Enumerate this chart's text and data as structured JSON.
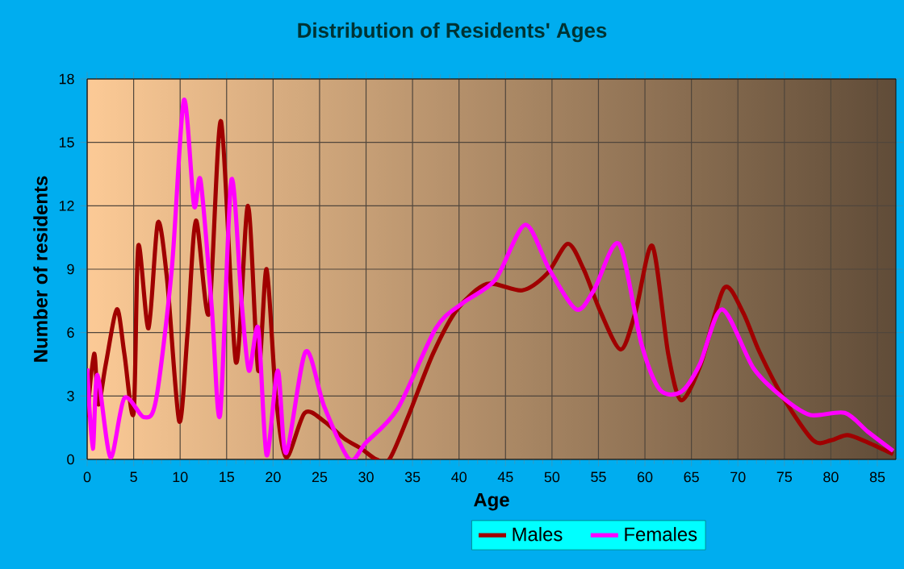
{
  "chart_data": {
    "type": "line",
    "title": "Distribution of Residents' Ages",
    "xlabel": "Age",
    "ylabel": "Number of residents",
    "xlim": [
      0,
      87
    ],
    "ylim": [
      0,
      18
    ],
    "xticks": [
      0,
      5,
      10,
      15,
      20,
      25,
      30,
      35,
      40,
      45,
      50,
      55,
      60,
      65,
      70,
      75,
      80,
      85
    ],
    "yticks": [
      0,
      3,
      6,
      9,
      12,
      15,
      18
    ],
    "grid": true,
    "legend": "bottom",
    "marker": "none",
    "line_style": "solid",
    "series": [
      {
        "name": "Males",
        "color": "#a00000",
        "x": [
          0,
          0.75,
          1.2,
          2,
          3.2,
          4,
          5,
          5.5,
          6.6,
          7.6,
          8.6,
          9.9,
          10.8,
          11.7,
          13.1,
          14.4,
          16,
          17.3,
          18.4,
          19.3,
          20.3,
          21.4,
          23.4,
          25.5,
          27.6,
          29.5,
          31.1,
          32.5,
          34.5,
          37.2,
          39.8,
          43,
          46.8,
          49.5,
          51.7,
          53.4,
          55.2,
          57.4,
          59,
          60.8,
          62.5,
          63.9,
          66,
          68.5,
          70.5,
          72.3,
          74.9,
          78.1,
          80,
          81.8,
          84,
          86.7
        ],
        "values": [
          2,
          5,
          2.6,
          4.5,
          7.1,
          5,
          2.2,
          10.1,
          6.2,
          11.2,
          8.5,
          1.8,
          6,
          11.3,
          6.9,
          16,
          4.6,
          12,
          4.2,
          9,
          3,
          0.1,
          2.2,
          1.8,
          1,
          0.5,
          0,
          0,
          2,
          5,
          7.1,
          8.3,
          8,
          8.8,
          10.2,
          9,
          7,
          5.2,
          7,
          10.1,
          5,
          2.8,
          4.5,
          8.1,
          7,
          5.1,
          2.9,
          0.9,
          0.9,
          1.15,
          0.8,
          0.25
        ]
      },
      {
        "name": "Females",
        "color": "#ff00ff",
        "x": [
          0,
          0.6,
          1.1,
          2.5,
          4,
          6.1,
          7.4,
          9.1,
          10.4,
          11.5,
          12.2,
          13.4,
          14.3,
          15.5,
          16.6,
          17.4,
          18.4,
          19.3,
          20.5,
          21.4,
          23.5,
          25.5,
          28.2,
          30,
          33.4,
          37.5,
          40.4,
          43.9,
          47.1,
          49.7,
          52.6,
          54.5,
          57.2,
          59.6,
          61.6,
          63.9,
          65.9,
          68.3,
          71.7,
          74.9,
          77.8,
          81.5,
          84,
          86.7
        ],
        "values": [
          4.3,
          0.5,
          4,
          0.1,
          2.9,
          2,
          2.8,
          9,
          17,
          12,
          13.2,
          7.2,
          2.1,
          13.2,
          7.5,
          4.2,
          6.2,
          0.2,
          4.2,
          0.3,
          5.1,
          2.5,
          0,
          0.8,
          2.4,
          6.2,
          7.4,
          8.5,
          11.1,
          9,
          7.1,
          8,
          10.2,
          5.5,
          3.3,
          3.2,
          4.5,
          7.1,
          4.3,
          2.9,
          2.1,
          2.2,
          1.3,
          0.4
        ]
      }
    ]
  }
}
